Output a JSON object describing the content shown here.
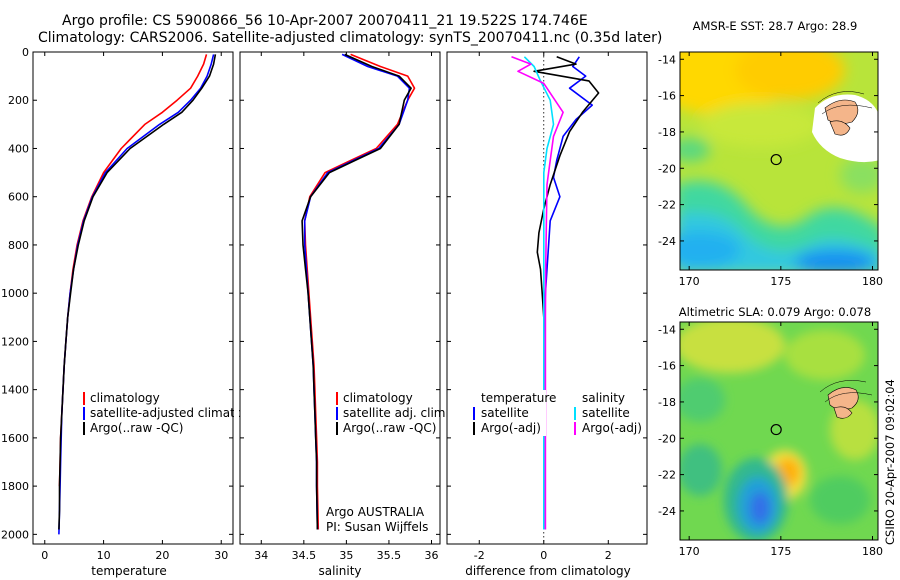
{
  "header": {
    "title_line1": "Argo profile: CS 5900866_56 10-Apr-2007 20070411_21 19.522S 174.746E",
    "title_line2": "Climatology: CARS2006. Satellite-adjusted climatology: synTS_20070411.nc (0.35d later)"
  },
  "colors": {
    "climatology": "#ff0000",
    "satellite": "#0000ff",
    "argo": "#000000",
    "satellite_salinity": "#00e0ff",
    "argo_salinity": "#ff00ff"
  },
  "chart_data": [
    {
      "type": "line",
      "name": "temperature",
      "xlabel": "temperature",
      "xlim": [
        -2,
        32
      ],
      "ylim": [
        2040,
        0
      ],
      "xticks": [
        0,
        10,
        20,
        30
      ],
      "yticks": [
        0,
        200,
        400,
        600,
        800,
        1000,
        1200,
        1400,
        1600,
        1800,
        2000
      ],
      "legend": [
        "climatology",
        "satellite-adjusted climatology",
        "Argo(..raw -QC)"
      ],
      "series": [
        {
          "name": "climatology",
          "color": "#ff0000",
          "x": [
            27.5,
            27.0,
            26.0,
            24.8,
            22.5,
            20.0,
            17.0,
            13.0,
            10.0,
            8.0,
            6.5,
            5.5,
            4.8,
            4.3,
            3.9,
            3.6,
            3.3,
            3.1,
            2.9,
            2.7,
            2.6,
            2.5
          ],
          "y": [
            10,
            50,
            100,
            150,
            200,
            250,
            300,
            400,
            500,
            600,
            700,
            800,
            900,
            1000,
            1100,
            1200,
            1300,
            1400,
            1500,
            1600,
            1700,
            1800
          ]
        },
        {
          "name": "satellite-adjusted climatology",
          "color": "#0000ff",
          "x": [
            28.7,
            28.3,
            27.6,
            26.5,
            24.8,
            22.7,
            19.5,
            14.0,
            10.3,
            8.1,
            6.6,
            5.6,
            4.9,
            4.3,
            3.9,
            3.6,
            3.3,
            3.1,
            2.9,
            2.8,
            2.7,
            2.6,
            2.5,
            2.4
          ],
          "y": [
            10,
            50,
            100,
            150,
            200,
            250,
            300,
            400,
            500,
            600,
            700,
            800,
            900,
            1000,
            1100,
            1200,
            1300,
            1400,
            1500,
            1600,
            1700,
            1800,
            1900,
            2000
          ]
        },
        {
          "name": "Argo(..raw -QC)",
          "color": "#000000",
          "x": [
            29.0,
            28.7,
            28.0,
            26.7,
            25.2,
            23.3,
            20.2,
            14.5,
            10.6,
            8.2,
            6.7,
            5.7,
            4.9,
            4.4,
            3.9,
            3.6,
            3.3,
            3.1,
            2.9,
            2.7,
            2.6,
            2.5,
            2.5,
            2.4
          ],
          "y": [
            10,
            50,
            100,
            150,
            200,
            250,
            300,
            400,
            500,
            600,
            700,
            800,
            900,
            1000,
            1100,
            1200,
            1300,
            1400,
            1500,
            1600,
            1700,
            1800,
            1900,
            1980
          ]
        }
      ]
    },
    {
      "type": "line",
      "name": "salinity",
      "xlabel": "salinity",
      "xlim": [
        33.75,
        36.1
      ],
      "ylim": [
        2040,
        0
      ],
      "xticks": [
        34,
        34.5,
        35,
        35.5,
        36
      ],
      "yticks": [
        0,
        200,
        400,
        600,
        800,
        1000,
        1200,
        1400,
        1600,
        1800,
        2000
      ],
      "legend": [
        "climatology",
        "satellite adj. clim.",
        "Argo(..raw -QC)"
      ],
      "annotation": [
        "Argo AUSTRALIA",
        "PI: Susan Wijffels"
      ],
      "series": [
        {
          "name": "climatology",
          "color": "#ff0000",
          "x": [
            35.05,
            35.4,
            35.72,
            35.8,
            35.72,
            35.6,
            35.35,
            35.05,
            34.75,
            34.57,
            34.51,
            34.52,
            34.54,
            34.56,
            34.58,
            34.6,
            34.62,
            34.63,
            34.64,
            34.65,
            34.66,
            34.66,
            34.67
          ],
          "y": [
            10,
            60,
            100,
            150,
            200,
            300,
            400,
            450,
            500,
            600,
            700,
            800,
            900,
            1000,
            1100,
            1200,
            1300,
            1400,
            1500,
            1600,
            1700,
            1800,
            1980
          ]
        },
        {
          "name": "satellite adj. clim.",
          "color": "#0000ff",
          "x": [
            34.95,
            35.25,
            35.6,
            35.74,
            35.72,
            35.62,
            35.38,
            35.08,
            34.78,
            34.58,
            34.51,
            34.51,
            34.53,
            34.55,
            34.57,
            34.59,
            34.61,
            34.62,
            34.63,
            34.64,
            34.65,
            34.65,
            34.66
          ],
          "y": [
            10,
            60,
            100,
            150,
            200,
            300,
            400,
            450,
            500,
            600,
            700,
            800,
            900,
            1000,
            1100,
            1200,
            1300,
            1400,
            1500,
            1600,
            1700,
            1800,
            1980
          ]
        },
        {
          "name": "Argo(..raw -QC)",
          "color": "#000000",
          "x": [
            34.98,
            35.3,
            35.62,
            35.76,
            35.68,
            35.62,
            35.4,
            35.1,
            34.8,
            34.58,
            34.48,
            34.49,
            34.52,
            34.55,
            34.57,
            34.59,
            34.61,
            34.62,
            34.63,
            34.64,
            34.65,
            34.65,
            34.66
          ],
          "y": [
            10,
            60,
            100,
            150,
            200,
            300,
            400,
            450,
            500,
            600,
            700,
            800,
            900,
            1000,
            1100,
            1200,
            1300,
            1400,
            1500,
            1600,
            1700,
            1800,
            1980
          ]
        }
      ]
    },
    {
      "type": "line",
      "name": "difference",
      "xlabel": "difference from climatology",
      "xlim": [
        -3,
        3.2
      ],
      "ylim": [
        2040,
        0
      ],
      "xticks": [
        -2,
        0,
        2
      ],
      "yticks": [
        0,
        200,
        400,
        600,
        800,
        1000,
        1200,
        1400,
        1600,
        1800,
        2000
      ],
      "legend_left": [
        "temperature",
        "satellite",
        "Argo(-adj)"
      ],
      "legend_right": [
        "salinity",
        "satellite",
        "Argo(-adj)"
      ],
      "series": [
        {
          "name": "temperature satellite",
          "color": "#0000ff",
          "x": [
            1.1,
            0.9,
            1.3,
            0.8,
            1.5,
            1.0,
            0.6,
            0.4,
            0.3,
            0.5,
            0.2,
            0.15,
            0.1,
            0.05,
            0.02,
            0.0,
            0.0,
            0.0,
            0.0,
            0.0,
            0.0
          ],
          "y": [
            20,
            60,
            100,
            150,
            220,
            280,
            350,
            450,
            520,
            600,
            700,
            800,
            900,
            1000,
            1100,
            1200,
            1400,
            1600,
            1800,
            1900,
            1980
          ]
        },
        {
          "name": "temperature Argo(-adj)",
          "color": "#000000",
          "x": [
            0.4,
            1.0,
            -0.3,
            1.4,
            1.7,
            1.2,
            0.8,
            0.5,
            0.2,
            0.0,
            -0.15,
            -0.2,
            -0.1,
            -0.05,
            0.0,
            0.0,
            0.0,
            0.0,
            0.0,
            0.0
          ],
          "y": [
            20,
            50,
            80,
            120,
            170,
            250,
            330,
            430,
            550,
            650,
            750,
            830,
            900,
            1000,
            1100,
            1200,
            1400,
            1600,
            1800,
            1980
          ]
        },
        {
          "name": "salinity satellite",
          "color": "#00e0ff",
          "x": [
            -0.6,
            -0.3,
            -0.1,
            0.2,
            0.3,
            0.1,
            0.0,
            0.0,
            0.0,
            0.0,
            0.0,
            0.0,
            0.0,
            0.0,
            0.0
          ],
          "y": [
            20,
            60,
            120,
            200,
            300,
            400,
            500,
            600,
            800,
            1000,
            1200,
            1400,
            1600,
            1800,
            1980
          ]
        },
        {
          "name": "salinity Argo(-adj)",
          "color": "#ff00ff",
          "x": [
            -1.0,
            -0.4,
            -0.8,
            0.0,
            0.6,
            0.3,
            0.2,
            0.1,
            0.08,
            0.06,
            0.05,
            0.05,
            0.05,
            0.05,
            0.05
          ],
          "y": [
            20,
            50,
            80,
            130,
            250,
            350,
            450,
            550,
            700,
            900,
            1100,
            1300,
            1500,
            1700,
            1980
          ]
        }
      ]
    },
    {
      "type": "heatmap",
      "name": "sst_map",
      "title": "AMSR-E SST: 28.7 Argo: 28.9",
      "xlim": [
        169.5,
        180.3
      ],
      "ylim": [
        -25.6,
        -13.6
      ],
      "xticks": [
        170,
        175,
        180
      ],
      "yticks": [
        -14,
        -16,
        -18,
        -20,
        -22,
        -24
      ],
      "marker": [
        174.746,
        -19.522
      ]
    },
    {
      "type": "heatmap",
      "name": "sla_map",
      "title": "Altimetric SLA: 0.079 Argo: 0.078",
      "xlim": [
        169.5,
        180.3
      ],
      "ylim": [
        -25.6,
        -13.6
      ],
      "xticks": [
        170,
        175,
        180
      ],
      "yticks": [
        -14,
        -16,
        -18,
        -20,
        -22,
        -24
      ],
      "marker": [
        174.746,
        -19.522
      ]
    }
  ],
  "credit": "CSIRO 20-Apr-2007 09:02:04"
}
